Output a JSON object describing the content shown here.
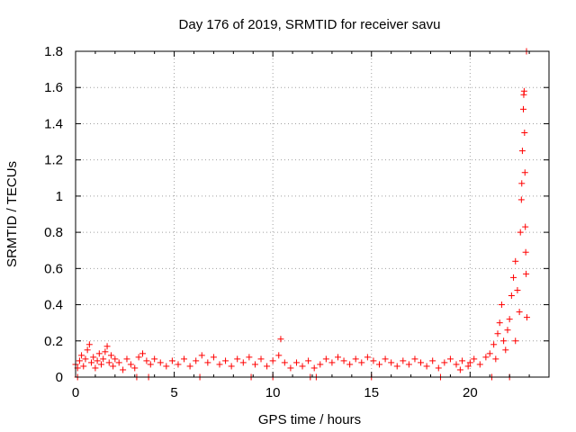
{
  "chart_data": {
    "type": "scatter",
    "title": "Day 176 of 2019, SRMTID for receiver savu",
    "xlabel": "GPS time / hours",
    "ylabel": "SRMTID / TECUs",
    "xlim": [
      0,
      24
    ],
    "ylim": [
      0,
      1.8
    ],
    "x_ticks": [
      0,
      5,
      10,
      15,
      20
    ],
    "x_tick_labels": [
      "0",
      "5",
      "10",
      "15",
      "20"
    ],
    "y_ticks": [
      0,
      0.2,
      0.4,
      0.6,
      0.8,
      1,
      1.2,
      1.4,
      1.6,
      1.8
    ],
    "y_tick_labels": [
      "0",
      "0.2",
      "0.4",
      "0.6",
      "0.8",
      "1",
      "1.2",
      "1.4",
      "1.6",
      "1.8"
    ],
    "grid": true,
    "marker": "+",
    "color": "#ff0000",
    "series": [
      {
        "name": "SRMTID",
        "points": [
          [
            0.0,
            0.07
          ],
          [
            0.1,
            0.05
          ],
          [
            0.2,
            0.09
          ],
          [
            0.3,
            0.12
          ],
          [
            0.4,
            0.06
          ],
          [
            0.5,
            0.1
          ],
          [
            0.6,
            0.15
          ],
          [
            0.7,
            0.18
          ],
          [
            0.8,
            0.08
          ],
          [
            0.9,
            0.11
          ],
          [
            1.0,
            0.05
          ],
          [
            1.1,
            0.09
          ],
          [
            1.2,
            0.13
          ],
          [
            1.3,
            0.07
          ],
          [
            1.4,
            0.1
          ],
          [
            1.5,
            0.14
          ],
          [
            1.6,
            0.17
          ],
          [
            1.7,
            0.08
          ],
          [
            1.8,
            0.12
          ],
          [
            1.9,
            0.06
          ],
          [
            2.0,
            0.1
          ],
          [
            2.2,
            0.08
          ],
          [
            2.4,
            0.04
          ],
          [
            2.6,
            0.1
          ],
          [
            2.8,
            0.07
          ],
          [
            3.0,
            0.05
          ],
          [
            3.2,
            0.11
          ],
          [
            3.4,
            0.13
          ],
          [
            3.6,
            0.09
          ],
          [
            3.8,
            0.07
          ],
          [
            4.0,
            0.1
          ],
          [
            4.3,
            0.08
          ],
          [
            4.6,
            0.06
          ],
          [
            4.9,
            0.09
          ],
          [
            5.2,
            0.07
          ],
          [
            5.5,
            0.1
          ],
          [
            5.8,
            0.06
          ],
          [
            6.1,
            0.09
          ],
          [
            6.4,
            0.12
          ],
          [
            6.7,
            0.08
          ],
          [
            7.0,
            0.11
          ],
          [
            7.3,
            0.07
          ],
          [
            7.6,
            0.09
          ],
          [
            7.9,
            0.06
          ],
          [
            8.2,
            0.1
          ],
          [
            8.5,
            0.08
          ],
          [
            8.8,
            0.11
          ],
          [
            9.1,
            0.07
          ],
          [
            9.4,
            0.1
          ],
          [
            9.7,
            0.06
          ],
          [
            10.0,
            0.09
          ],
          [
            10.3,
            0.12
          ],
          [
            10.4,
            0.21
          ],
          [
            10.6,
            0.08
          ],
          [
            10.9,
            0.05
          ],
          [
            11.2,
            0.08
          ],
          [
            11.5,
            0.06
          ],
          [
            11.8,
            0.09
          ],
          [
            12.1,
            0.05
          ],
          [
            12.4,
            0.07
          ],
          [
            12.7,
            0.1
          ],
          [
            13.0,
            0.08
          ],
          [
            13.3,
            0.11
          ],
          [
            13.6,
            0.09
          ],
          [
            13.9,
            0.07
          ],
          [
            14.2,
            0.1
          ],
          [
            14.5,
            0.08
          ],
          [
            14.8,
            0.11
          ],
          [
            15.1,
            0.09
          ],
          [
            15.4,
            0.07
          ],
          [
            15.7,
            0.1
          ],
          [
            16.0,
            0.08
          ],
          [
            16.3,
            0.06
          ],
          [
            16.6,
            0.09
          ],
          [
            16.9,
            0.07
          ],
          [
            17.2,
            0.1
          ],
          [
            17.5,
            0.08
          ],
          [
            17.8,
            0.06
          ],
          [
            18.1,
            0.09
          ],
          [
            18.4,
            0.05
          ],
          [
            18.7,
            0.08
          ],
          [
            19.0,
            0.1
          ],
          [
            19.3,
            0.07
          ],
          [
            19.6,
            0.09
          ],
          [
            19.9,
            0.06
          ],
          [
            20.2,
            0.1
          ],
          [
            20.5,
            0.07
          ],
          [
            20.8,
            0.11
          ],
          [
            21.0,
            0.13
          ],
          [
            21.2,
            0.18
          ],
          [
            21.4,
            0.24
          ],
          [
            21.5,
            0.3
          ],
          [
            21.6,
            0.4
          ],
          [
            21.7,
            0.2
          ],
          [
            21.8,
            0.15
          ],
          [
            21.9,
            0.26
          ],
          [
            22.0,
            0.32
          ],
          [
            22.1,
            0.45
          ],
          [
            22.2,
            0.55
          ],
          [
            22.3,
            0.64
          ],
          [
            22.4,
            0.48
          ],
          [
            22.5,
            0.36
          ],
          [
            22.55,
            0.8
          ],
          [
            22.6,
            0.98
          ],
          [
            22.62,
            1.07
          ],
          [
            22.65,
            1.25
          ],
          [
            22.7,
            1.48
          ],
          [
            22.72,
            1.56
          ],
          [
            22.74,
            1.58
          ],
          [
            22.76,
            1.35
          ],
          [
            22.78,
            1.13
          ],
          [
            22.8,
            0.83
          ],
          [
            22.82,
            0.69
          ],
          [
            22.84,
            0.57
          ],
          [
            22.86,
            1.8
          ],
          [
            22.88,
            0.33
          ],
          [
            22.3,
            0.2
          ],
          [
            21.3,
            0.1
          ],
          [
            20.0,
            0.08
          ],
          [
            19.5,
            0.04
          ],
          [
            0.1,
            0.0
          ],
          [
            3.1,
            0.0
          ],
          [
            3.7,
            0.0
          ],
          [
            6.3,
            0.0
          ],
          [
            8.9,
            0.0
          ],
          [
            10.0,
            0.0
          ],
          [
            11.9,
            0.0
          ],
          [
            12.2,
            0.0
          ],
          [
            15.0,
            0.0
          ],
          [
            18.5,
            0.0
          ],
          [
            21.1,
            0.0
          ],
          [
            22.0,
            0.0
          ]
        ]
      }
    ]
  }
}
